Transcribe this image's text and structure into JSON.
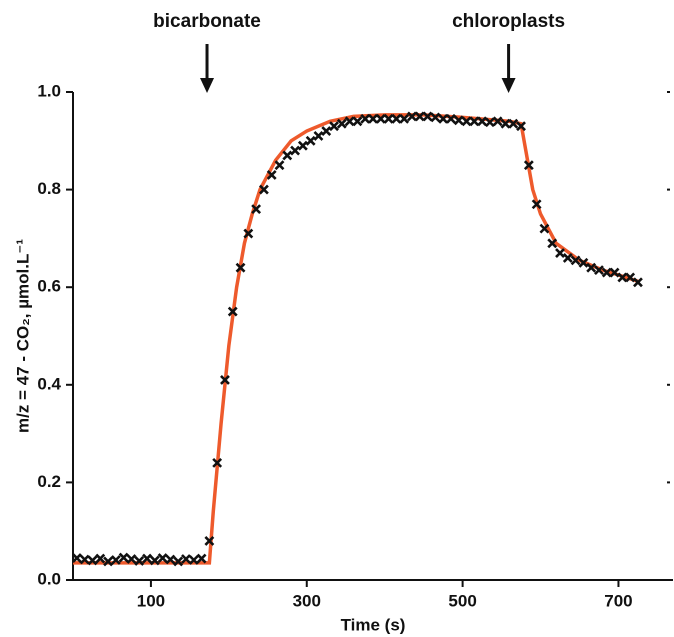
{
  "chart_data": {
    "type": "scatter",
    "xlabel": "Time (s)",
    "ylabel": "m/z = 47 - CO₂, µmol.L⁻¹",
    "xlim": [
      0,
      770
    ],
    "ylim": [
      0,
      1
    ],
    "xticks": [
      100,
      300,
      500,
      700
    ],
    "yticks": [
      {
        "value": 0,
        "label": "0.0"
      },
      0.2,
      0.4,
      0.6,
      0.8,
      {
        "value": 1,
        "label": "1.0"
      }
    ],
    "annotations": [
      {
        "text": "bicarbonate",
        "x": 172
      },
      {
        "text": "chloroplasts",
        "x": 559
      }
    ],
    "series": [
      {
        "type": "line",
        "color": "#ee5a2c",
        "x": [
          0,
          175,
          180,
          190,
          200,
          210,
          220,
          230,
          240,
          260,
          280,
          300,
          330,
          360,
          400,
          450,
          500,
          560,
          575,
          580,
          590,
          600,
          620,
          650,
          680,
          710,
          725
        ],
        "values": [
          0.035,
          0.035,
          0.14,
          0.32,
          0.48,
          0.6,
          0.69,
          0.75,
          0.8,
          0.86,
          0.9,
          0.92,
          0.94,
          0.95,
          0.953,
          0.953,
          0.948,
          0.94,
          0.935,
          0.89,
          0.8,
          0.75,
          0.69,
          0.655,
          0.635,
          0.62,
          0.612
        ]
      },
      {
        "type": "scatter",
        "color": "#111111",
        "x": [
          5,
          15,
          25,
          35,
          45,
          55,
          65,
          75,
          85,
          95,
          105,
          115,
          125,
          135,
          145,
          155,
          165,
          175,
          185,
          195,
          205,
          215,
          225,
          235,
          245,
          255,
          265,
          275,
          285,
          295,
          305,
          315,
          325,
          335,
          345,
          355,
          365,
          375,
          385,
          395,
          405,
          415,
          425,
          435,
          445,
          455,
          465,
          475,
          485,
          495,
          505,
          515,
          525,
          535,
          545,
          555,
          565,
          575,
          585,
          595,
          605,
          615,
          625,
          635,
          645,
          655,
          665,
          675,
          685,
          695,
          705,
          715,
          725
        ],
        "values": [
          0.045,
          0.042,
          0.04,
          0.044,
          0.038,
          0.041,
          0.046,
          0.043,
          0.039,
          0.044,
          0.04,
          0.045,
          0.042,
          0.038,
          0.043,
          0.041,
          0.044,
          0.08,
          0.24,
          0.41,
          0.55,
          0.64,
          0.71,
          0.76,
          0.8,
          0.83,
          0.85,
          0.87,
          0.88,
          0.89,
          0.9,
          0.91,
          0.92,
          0.93,
          0.935,
          0.94,
          0.94,
          0.945,
          0.945,
          0.945,
          0.945,
          0.945,
          0.945,
          0.95,
          0.95,
          0.95,
          0.948,
          0.945,
          0.945,
          0.942,
          0.94,
          0.94,
          0.94,
          0.938,
          0.94,
          0.935,
          0.935,
          0.93,
          0.85,
          0.77,
          0.72,
          0.69,
          0.67,
          0.66,
          0.655,
          0.65,
          0.64,
          0.635,
          0.63,
          0.63,
          0.62,
          0.62,
          0.61
        ]
      }
    ]
  }
}
